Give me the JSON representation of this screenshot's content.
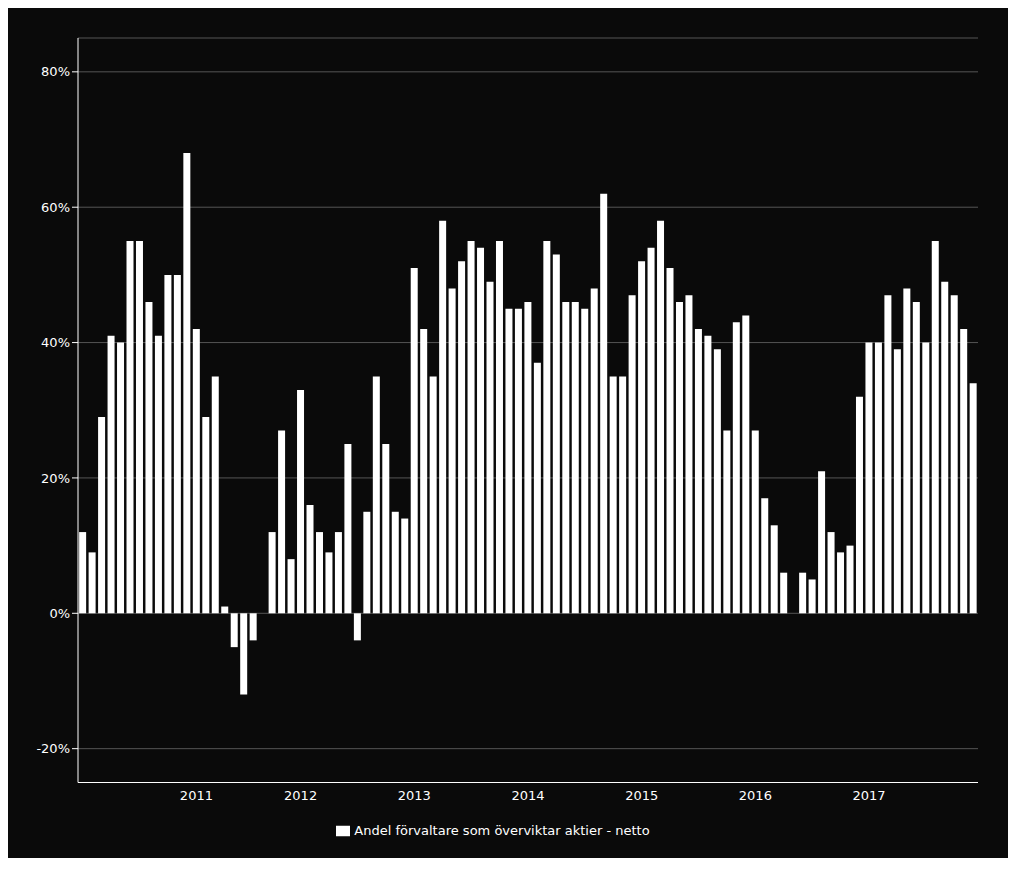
{
  "chart_data": {
    "type": "bar",
    "categories": [
      null,
      null,
      null,
      null,
      null,
      null,
      null,
      null,
      null,
      null,
      null,
      null,
      "2011",
      null,
      null,
      null,
      null,
      null,
      null,
      null,
      null,
      null,
      null,
      "2012",
      null,
      null,
      null,
      null,
      null,
      null,
      null,
      null,
      null,
      null,
      null,
      "2013",
      null,
      null,
      null,
      null,
      null,
      null,
      null,
      null,
      null,
      null,
      null,
      "2014",
      null,
      null,
      null,
      null,
      null,
      null,
      null,
      null,
      null,
      null,
      null,
      "2015",
      null,
      null,
      null,
      null,
      null,
      null,
      null,
      null,
      null,
      null,
      null,
      "2016",
      null,
      null,
      null,
      null,
      null,
      null,
      null,
      null,
      null,
      null,
      null,
      "2017",
      null,
      null,
      null,
      null,
      null,
      null,
      null,
      null,
      null,
      null,
      null
    ],
    "series": [
      {
        "name": "Andel förvaltare som överviktar aktier - netto",
        "color": "#ffffff",
        "values": [
          0.12,
          0.09,
          0.29,
          0.41,
          0.4,
          0.55,
          0.55,
          0.46,
          0.41,
          0.5,
          0.5,
          0.68,
          0.42,
          0.29,
          0.35,
          0.01,
          -0.05,
          -0.12,
          -0.04,
          0.0,
          0.12,
          0.27,
          0.08,
          0.33,
          0.16,
          0.12,
          0.09,
          0.12,
          0.25,
          -0.04,
          0.15,
          0.35,
          0.25,
          0.15,
          0.14,
          0.51,
          0.42,
          0.35,
          0.58,
          0.48,
          0.52,
          0.55,
          0.54,
          0.49,
          0.55,
          0.45,
          0.45,
          0.46,
          0.37,
          0.55,
          0.53,
          0.46,
          0.46,
          0.45,
          0.48,
          0.62,
          0.35,
          0.35,
          0.47,
          0.52,
          0.54,
          0.58,
          0.51,
          0.46,
          0.47,
          0.42,
          0.41,
          0.39,
          0.27,
          0.43,
          0.44,
          0.27,
          0.17,
          0.13,
          0.06,
          0.0,
          0.06,
          0.05,
          0.21,
          0.12,
          0.09,
          0.1,
          0.32,
          0.4,
          0.4,
          0.47,
          0.39,
          0.48,
          0.46,
          0.4,
          0.55,
          0.49,
          0.47,
          0.42,
          0.34
        ]
      }
    ],
    "ylim": [
      -0.25,
      0.85
    ],
    "yticks": [
      {
        "value": -0.2,
        "label": "-20%"
      },
      {
        "value": 0.0,
        "label": "0%"
      },
      {
        "value": 0.2,
        "label": "20%"
      },
      {
        "value": 0.4,
        "label": "40%"
      },
      {
        "value": 0.6,
        "label": "60%"
      },
      {
        "value": 0.8,
        "label": "80%"
      }
    ],
    "grid": true,
    "legend": "bottom"
  }
}
